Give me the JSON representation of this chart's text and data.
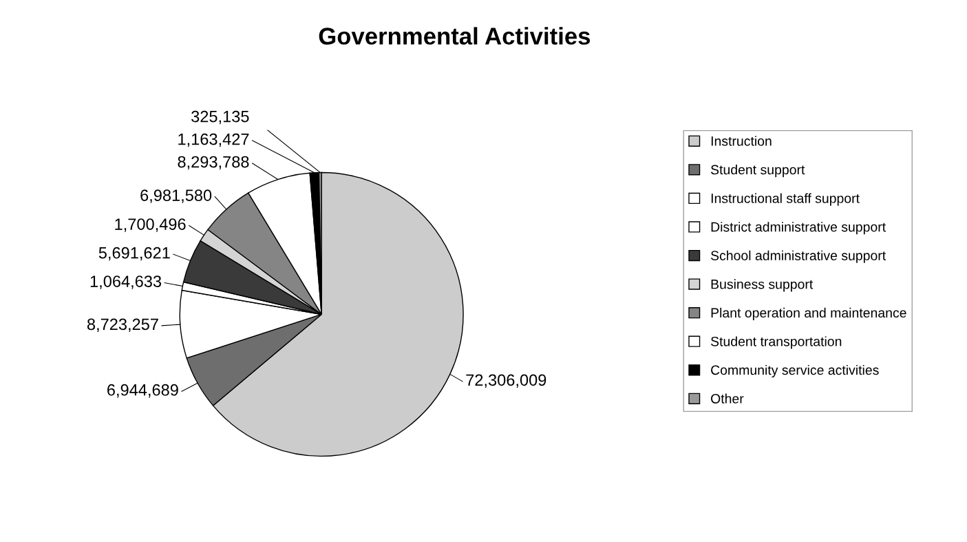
{
  "chart_data": {
    "type": "pie",
    "title": "Governmental Activities",
    "categories": [
      "Instruction",
      "Student support",
      "Instructional staff support",
      "District administrative support",
      "School administrative support",
      "Business support",
      "Plant operation and maintenance",
      "Student transportation",
      "Community service activities",
      "Other"
    ],
    "values": [
      72306009,
      6944689,
      8723257,
      1064633,
      5691621,
      1700496,
      6981580,
      8293788,
      1163427,
      325135
    ],
    "colors": [
      "#cccccc",
      "#6e6e6e",
      "#ffffff",
      "#ffffff",
      "#3a3a3a",
      "#d4d4d4",
      "#858585",
      "#ffffff",
      "#000000",
      "#9a9a9a"
    ],
    "value_labels": [
      "72,306,009",
      "6,944,689",
      "8,723,257",
      "1,064,633",
      "5,691,621",
      "1,700,496",
      "6,981,580",
      "8,293,788",
      "1,163,427",
      "325,135"
    ],
    "legend": "right"
  }
}
